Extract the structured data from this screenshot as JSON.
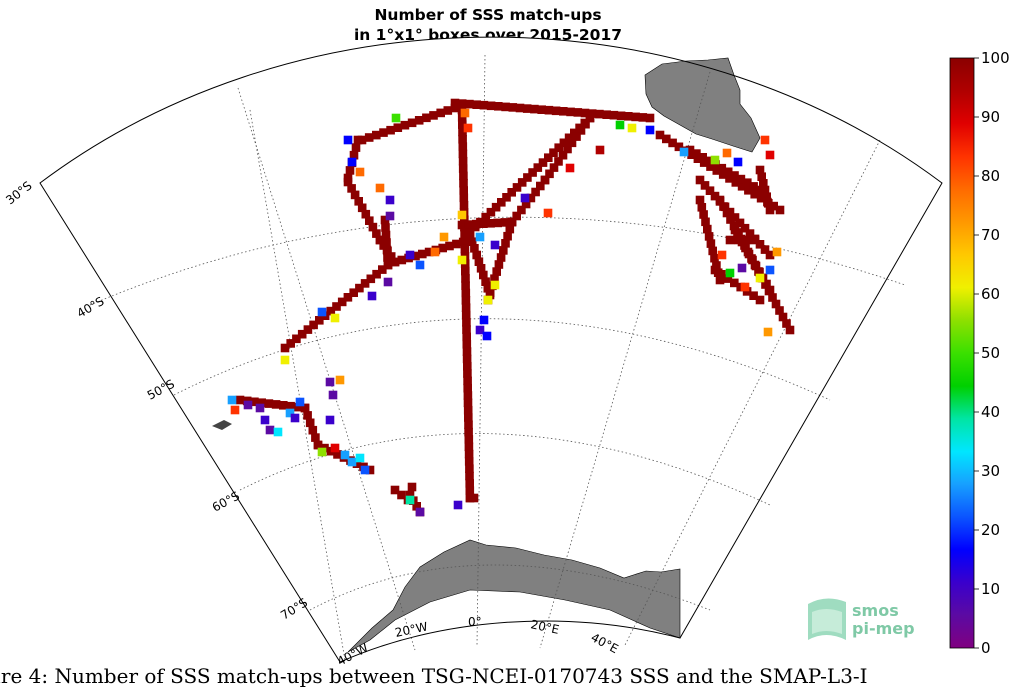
{
  "title_lines": [
    "Number of SSS match-ups",
    "in 1°x1° boxes over 2015-2017"
  ],
  "caption": "ure 4: Number of SSS match-ups between TSG-NCEI-0170743 SSS and the SMAP-L3-I",
  "logo": {
    "line1": "smos",
    "line2": "pi-mep",
    "color": "#7fc9a6"
  },
  "latitude_labels": [
    "30°S",
    "40°S",
    "50°S",
    "60°S",
    "70°S"
  ],
  "longitude_labels": [
    "40°W",
    "20°W",
    "0°",
    "20°E",
    "40°E"
  ],
  "colorbar": {
    "ticks": [
      "0",
      "10",
      "20",
      "30",
      "40",
      "50",
      "60",
      "70",
      "80",
      "90",
      "100"
    ],
    "min": 0,
    "max": 100,
    "colors": [
      "#800080",
      "#5b0aa3",
      "#3a00cc",
      "#0000ff",
      "#0b54ff",
      "#17a0ff",
      "#00e6ff",
      "#00e5a3",
      "#00d000",
      "#3be000",
      "#8fe000",
      "#f0f000",
      "#ffc800",
      "#ff9800",
      "#ff6a00",
      "#ff3300",
      "#e00000",
      "#b00000",
      "#8b0000"
    ]
  },
  "colors": {
    "land": "#808080",
    "grid": "#555555",
    "track": "#8b0000"
  },
  "chart_data": {
    "type": "heatmap",
    "title": "Number of SSS match-ups in 1°x1° boxes over 2015-2017",
    "value_range": [
      0,
      100
    ],
    "projection": "polar stereographic sector, 30°S-75°S, 40°W-40°E",
    "region": {
      "lat_range": [
        -75,
        -30
      ],
      "lon_range": [
        -40,
        40
      ]
    },
    "legend": "right"
  }
}
